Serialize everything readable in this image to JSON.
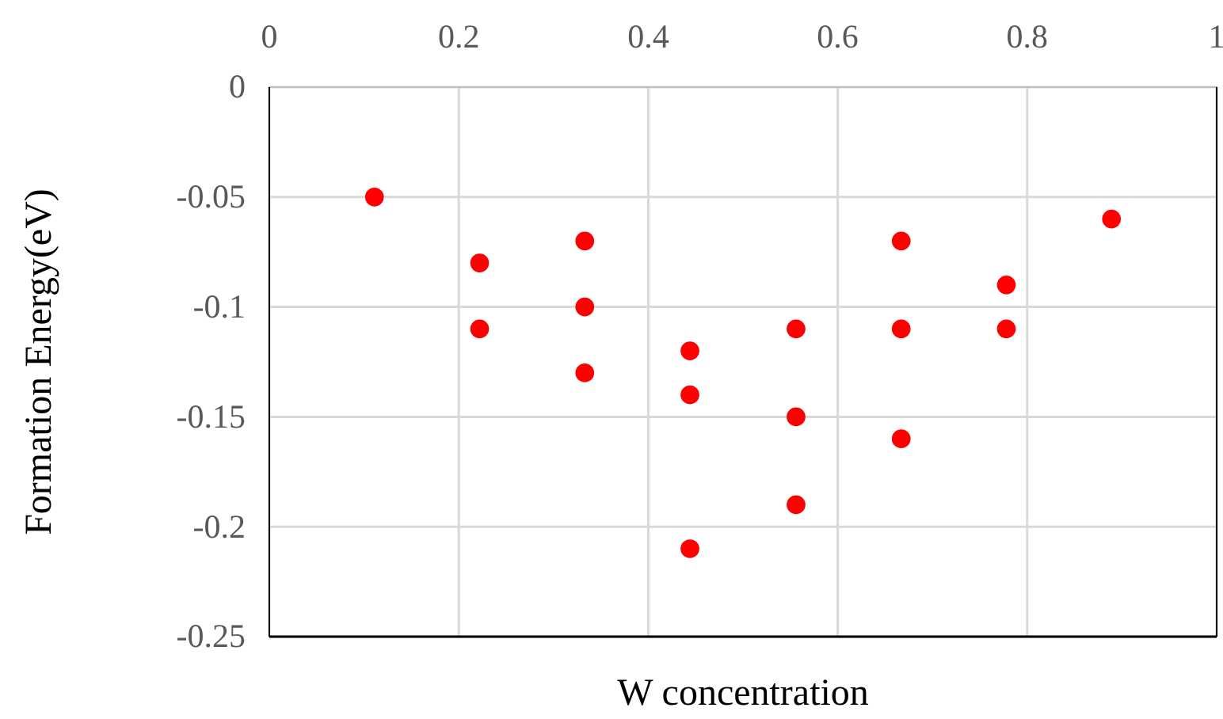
{
  "chart_data": {
    "type": "scatter",
    "xlabel": "W concentration",
    "ylabel": "Formation Energy(eV)",
    "xlim": [
      0,
      1
    ],
    "xticks": [
      0,
      0.2,
      0.4,
      0.6,
      0.8,
      1
    ],
    "ylim": [
      -0.25,
      0
    ],
    "yticks": [
      0,
      -0.05,
      -0.1,
      -0.15,
      -0.2,
      -0.25
    ],
    "grid": true,
    "marker": "circle",
    "series": [
      {
        "color": "#ff0000",
        "x": [
          0.111,
          0.222,
          0.222,
          0.333,
          0.333,
          0.333,
          0.444,
          0.444,
          0.444,
          0.556,
          0.556,
          0.556,
          0.667,
          0.667,
          0.667,
          0.778,
          0.778,
          0.889
        ],
        "values": [
          -0.05,
          -0.08,
          -0.11,
          -0.07,
          -0.1,
          -0.13,
          -0.12,
          -0.14,
          -0.21,
          -0.11,
          -0.15,
          -0.19,
          -0.07,
          -0.11,
          -0.16,
          -0.09,
          -0.11,
          -0.06
        ]
      }
    ]
  }
}
